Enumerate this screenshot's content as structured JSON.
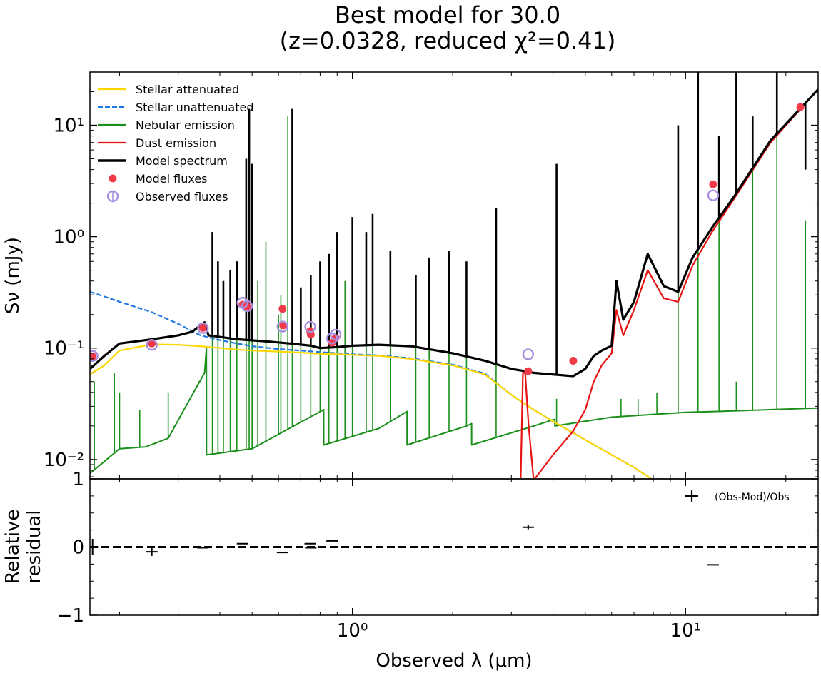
{
  "title_line1": "Best model for 30.0",
  "title_line2": "(z=0.0328, reduced χ²=0.41)",
  "chart_data": [
    {
      "type": "line",
      "panel": "spectrum",
      "xscale": "log",
      "yscale": "log",
      "xlim": [
        0.163,
        25.0
      ],
      "ylim": [
        0.0067,
        30.0
      ],
      "ylabel": "Sν (mJy)",
      "ytick_labels": [
        "10⁻²",
        "10⁻¹",
        "10⁰",
        "10¹"
      ],
      "yticks": [
        0.01,
        0.1,
        1,
        10
      ],
      "legend": [
        {
          "name": "Stellar attenuated",
          "color": "#FFD700",
          "style": "solid"
        },
        {
          "name": "Stellar unattenuated",
          "color": "#1E78E6",
          "style": "dashed"
        },
        {
          "name": "Nebular emission",
          "color": "#1A8F1A",
          "style": "solid"
        },
        {
          "name": "Dust emission",
          "color": "#E81212",
          "style": "solid"
        },
        {
          "name": "Model spectrum",
          "color": "#000000",
          "style": "solid-thick"
        },
        {
          "name": "Model fluxes",
          "color": "#F03A4A",
          "style": "marker-dot"
        },
        {
          "name": "Observed fluxes",
          "color": "#A98FE0",
          "style": "marker-circle"
        }
      ],
      "series": [
        {
          "name": "Stellar attenuated",
          "color": "#FFD700",
          "x": [
            0.163,
            0.18,
            0.2,
            0.25,
            0.3,
            0.35,
            0.4,
            0.45,
            0.5,
            0.6,
            0.7,
            0.8,
            0.9,
            1.0,
            1.2,
            1.5,
            2.0,
            2.5,
            3.0,
            3.5,
            4.0,
            4.5,
            5.0,
            6.0,
            7.0,
            7.9
          ],
          "y": [
            0.058,
            0.07,
            0.095,
            0.108,
            0.107,
            0.104,
            0.1,
            0.097,
            0.095,
            0.093,
            0.091,
            0.089,
            0.088,
            0.087,
            0.085,
            0.08,
            0.07,
            0.058,
            0.038,
            0.028,
            0.022,
            0.018,
            0.015,
            0.011,
            0.0085,
            0.0067
          ]
        },
        {
          "name": "Stellar unattenuated",
          "color": "#1E78E6",
          "x": [
            0.163,
            0.18,
            0.2,
            0.25,
            0.3,
            0.35,
            0.4,
            0.45,
            0.5,
            0.6,
            0.7,
            0.8,
            0.9,
            1.0,
            1.2,
            1.5,
            2.0,
            2.5,
            3.0,
            3.5,
            4.0,
            4.5,
            5.0,
            6.0,
            7.0,
            7.9
          ],
          "y": [
            0.32,
            0.29,
            0.26,
            0.21,
            0.165,
            0.13,
            0.118,
            0.11,
            0.104,
            0.098,
            0.095,
            0.092,
            0.09,
            0.088,
            0.086,
            0.081,
            0.071,
            0.059,
            0.038,
            0.028,
            0.022,
            0.018,
            0.015,
            0.011,
            0.0085,
            0.0067
          ]
        },
        {
          "name": "Nebular emission",
          "color": "#1A8F1A",
          "x": [
            0.163,
            0.2,
            0.24,
            0.28,
            0.32,
            0.36,
            0.3647,
            0.3648,
            0.5,
            0.82,
            0.8205,
            1.2,
            1.4588,
            1.459,
            2.2,
            2.279,
            2.28,
            3.5,
            4.05,
            4.051,
            6.0,
            10,
            15,
            25
          ],
          "y": [
            0.0075,
            0.0125,
            0.013,
            0.0155,
            0.032,
            0.06,
            0.1,
            0.011,
            0.0125,
            0.028,
            0.0135,
            0.019,
            0.027,
            0.0135,
            0.02,
            0.021,
            0.0135,
            0.02,
            0.023,
            0.02,
            0.024,
            0.0265,
            0.0275,
            0.029
          ]
        },
        {
          "name": "Dust emission",
          "color": "#E81212",
          "x": [
            3.2,
            3.25,
            3.3,
            3.38,
            3.5,
            4.0,
            4.6,
            5.0,
            5.3,
            5.6,
            6.0,
            6.2,
            6.5,
            7.0,
            7.7,
            8.6,
            9.5,
            10.5,
            12,
            14,
            18,
            25
          ],
          "y": [
            0.0068,
            0.06,
            0.06,
            0.02,
            0.0065,
            0.011,
            0.018,
            0.028,
            0.05,
            0.07,
            0.09,
            0.22,
            0.13,
            0.22,
            0.5,
            0.28,
            0.26,
            0.55,
            1.1,
            2.2,
            7.0,
            21.0
          ]
        },
        {
          "name": "Model spectrum",
          "color": "#000000",
          "x": [
            0.163,
            0.18,
            0.2,
            0.25,
            0.3,
            0.33,
            0.36,
            0.37,
            0.45,
            0.55,
            0.65,
            0.75,
            0.8,
            0.9,
            1.0,
            1.2,
            1.5,
            2.0,
            2.5,
            3.0,
            3.3,
            3.5,
            4.0,
            4.6,
            5.0,
            5.3,
            5.6,
            6.0,
            6.2,
            6.5,
            7.0,
            7.7,
            8.6,
            9.5,
            10.5,
            12,
            14,
            18,
            25
          ],
          "y": [
            0.065,
            0.085,
            0.11,
            0.12,
            0.13,
            0.14,
            0.17,
            0.13,
            0.12,
            0.115,
            0.11,
            0.105,
            0.1,
            0.102,
            0.105,
            0.107,
            0.104,
            0.09,
            0.077,
            0.065,
            0.062,
            0.06,
            0.058,
            0.056,
            0.065,
            0.085,
            0.095,
            0.105,
            0.4,
            0.18,
            0.26,
            0.7,
            0.36,
            0.32,
            0.65,
            1.2,
            2.3,
            7.3,
            21.0
          ]
        },
        {
          "name": "Nebular emission lines",
          "color": "#1A8F1A",
          "kind": "lines",
          "x": [
            0.168,
            0.193,
            0.2,
            0.23,
            0.28,
            0.29,
            0.345,
            0.38,
            0.395,
            0.41,
            0.43,
            0.45,
            0.48,
            0.49,
            0.5,
            0.52,
            0.55,
            0.6,
            0.61,
            0.64,
            0.66,
            0.7,
            0.75,
            0.8,
            0.85,
            0.9,
            0.95,
            1.0,
            1.1,
            1.15,
            1.3,
            1.55,
            1.7,
            1.95,
            2.2,
            2.7,
            4.1,
            6.4,
            7.2,
            8.2,
            9.5,
            10.9,
            12.6,
            14.2,
            15.9,
            18.8,
            22.9
          ],
          "y": [
            0.05,
            0.06,
            0.04,
            0.028,
            0.04,
            0.02,
            0.05,
            1.1,
            0.6,
            0.4,
            0.5,
            0.6,
            5.0,
            14.0,
            4.5,
            0.4,
            0.9,
            0.2,
            0.3,
            12.0,
            14.0,
            0.2,
            0.3,
            0.4,
            0.5,
            1.0,
            0.4,
            1.4,
            1.0,
            1.5,
            0.7,
            0.4,
            0.6,
            0.7,
            0.5,
            0.55,
            0.035,
            0.035,
            0.035,
            0.04,
            10.0,
            3.0,
            4.0,
            0.05,
            8.0,
            9.0,
            1.4
          ]
        },
        {
          "name": "Model spectrum lines",
          "color": "#000000",
          "kind": "lines",
          "x": [
            0.38,
            0.395,
            0.41,
            0.43,
            0.45,
            0.48,
            0.49,
            0.5,
            0.66,
            0.7,
            0.75,
            0.8,
            0.85,
            0.9,
            1.0,
            1.1,
            1.15,
            1.3,
            1.55,
            1.7,
            1.95,
            2.2,
            2.7,
            4.1,
            9.5,
            10.9,
            12.6,
            14.2,
            15.9,
            18.8,
            22.9
          ],
          "y": [
            1.1,
            0.6,
            0.4,
            0.5,
            0.6,
            5.0,
            14.0,
            4.5,
            14.0,
            0.35,
            0.45,
            0.6,
            0.7,
            1.1,
            1.5,
            1.1,
            1.6,
            0.75,
            0.45,
            0.65,
            0.75,
            0.6,
            1.8,
            4.5,
            10.0,
            30.0,
            8.0,
            30.0,
            12.0,
            30.0,
            4.0
          ]
        },
        {
          "name": "Model fluxes",
          "color": "#F03A4A",
          "kind": "markers",
          "x": [
            0.166,
            0.25,
            0.356,
            0.468,
            0.483,
            0.617,
            0.62,
            0.747,
            0.75,
            0.869,
            0.89,
            3.37,
            4.6,
            12.1,
            22.1
          ],
          "y": [
            0.084,
            0.11,
            0.152,
            0.245,
            0.235,
            0.225,
            0.16,
            0.142,
            0.132,
            0.112,
            0.123,
            0.062,
            0.077,
            2.95,
            14.5
          ]
        },
        {
          "name": "Observed fluxes",
          "color": "#A98FE0",
          "kind": "markers",
          "x": [
            0.166,
            0.25,
            0.356,
            0.468,
            0.483,
            0.617,
            0.747,
            0.869,
            0.89,
            3.37,
            12.1
          ],
          "y": [
            0.085,
            0.107,
            0.151,
            0.255,
            0.238,
            0.156,
            0.155,
            0.122,
            0.132,
            0.088,
            2.35
          ]
        }
      ]
    },
    {
      "type": "scatter",
      "panel": "residual",
      "xscale": "log",
      "xlim": [
        0.163,
        25.0
      ],
      "ylim": [
        -1,
        1
      ],
      "yticks": [
        -1,
        0,
        1
      ],
      "ytick_labels": [
        "−1",
        "0",
        "1"
      ],
      "xticks": [
        1,
        10
      ],
      "xtick_labels": [
        "10⁰",
        "10¹"
      ],
      "xlabel": "Observed λ (μm)",
      "ylabel_line1": "Relative",
      "ylabel_line2": "residual",
      "legend": [
        {
          "name": "(Obs-Mod)/Obs",
          "marker": "+"
        }
      ],
      "series": [
        {
          "name": "(Obs-Mod)/Obs",
          "x": [
            0.166,
            0.25,
            0.356,
            0.468,
            0.617,
            0.747,
            0.75,
            0.869,
            3.37,
            12.1
          ],
          "y": [
            0.0,
            -0.07,
            -0.01,
            0.05,
            -0.08,
            0.05,
            -0.01,
            0.09,
            0.29,
            -0.26
          ],
          "yerr": [
            0.12,
            0.06,
            0.0,
            0.0,
            0.0,
            0.0,
            0.0,
            0.0,
            0.03,
            0.0
          ]
        }
      ]
    }
  ]
}
